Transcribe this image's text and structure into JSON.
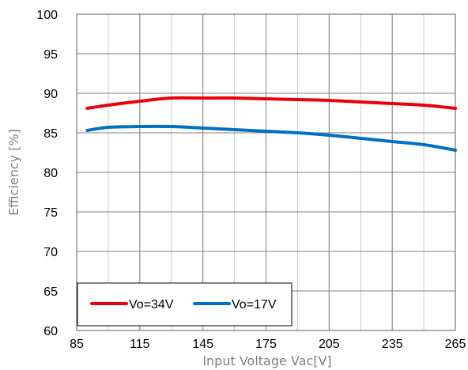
{
  "chart_data": {
    "type": "line",
    "title": "",
    "xlabel": "Input Voltage Vac[V]",
    "ylabel": "Efficiency [%]",
    "xlim": [
      85,
      265
    ],
    "ylim": [
      60,
      100
    ],
    "xticks": [
      85,
      115,
      145,
      175,
      205,
      235,
      265
    ],
    "xtick_labels": [
      "85",
      "115",
      "145",
      "175",
      "205",
      "235",
      "265"
    ],
    "yticks": [
      60,
      65,
      70,
      75,
      80,
      85,
      90,
      95,
      100
    ],
    "ytick_labels": [
      "60",
      "65",
      "70",
      "75",
      "80",
      "85",
      "90",
      "95",
      "100"
    ],
    "grid": true,
    "legend_position": "bottom-left",
    "series": [
      {
        "name": "Vo=34V",
        "color": "#e8000b",
        "x": [
          90,
          100,
          115,
          130,
          145,
          160,
          175,
          190,
          205,
          220,
          235,
          250,
          265
        ],
        "y": [
          88.1,
          88.5,
          89.0,
          89.4,
          89.4,
          89.4,
          89.3,
          89.2,
          89.1,
          88.9,
          88.7,
          88.5,
          88.1
        ]
      },
      {
        "name": "Vo=17V",
        "color": "#0070c0",
        "x": [
          90,
          100,
          115,
          130,
          145,
          160,
          175,
          190,
          205,
          220,
          235,
          250,
          265
        ],
        "y": [
          85.3,
          85.7,
          85.8,
          85.8,
          85.6,
          85.4,
          85.2,
          85.0,
          84.7,
          84.3,
          83.9,
          83.5,
          82.8
        ]
      }
    ]
  }
}
